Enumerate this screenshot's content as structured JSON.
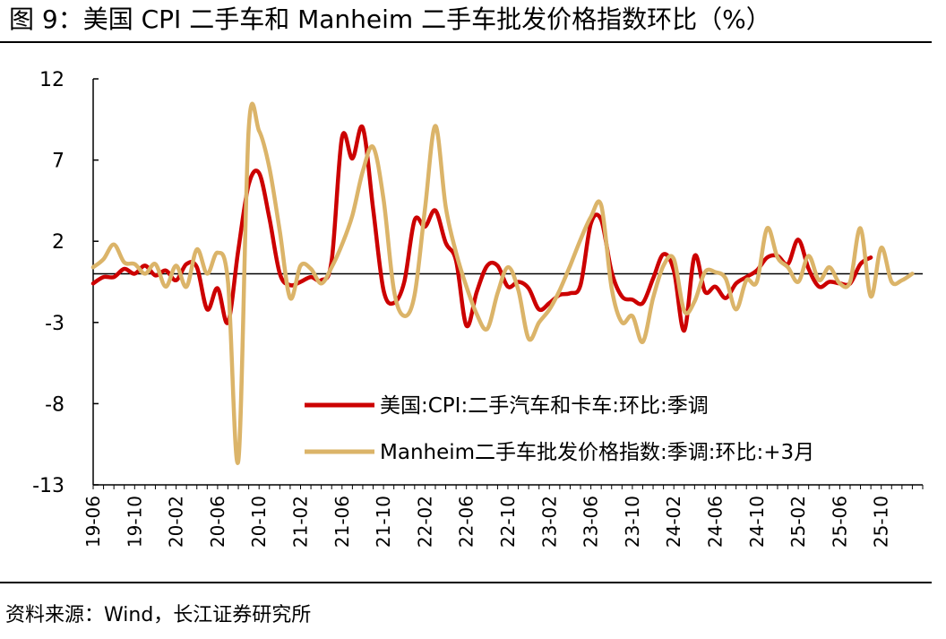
{
  "header": {
    "title": "图 9：美国 CPI 二手车和 Manheim 二手车批发价格指数环比（%）"
  },
  "footer": {
    "source": "资料来源：Wind，长江证券研究所"
  },
  "colors": {
    "cpi_series": "#cc0000",
    "manheim_series": "#dbb469",
    "axis": "#000000"
  },
  "chart_data": {
    "type": "line",
    "ylim": [
      -13,
      12
    ],
    "yticks": [
      12,
      7,
      2,
      -3,
      -8,
      -13
    ],
    "xlabel": "",
    "ylabel": "",
    "x_tick_labels": [
      "19-06",
      "19-10",
      "20-02",
      "20-06",
      "20-10",
      "21-02",
      "21-06",
      "21-10",
      "22-02",
      "22-06",
      "22-10",
      "23-02",
      "23-06",
      "23-10",
      "24-02",
      "24-06",
      "24-10",
      "25-02",
      "25-06",
      "25-10"
    ],
    "legend_position": "lower-center",
    "grid": false,
    "series": [
      {
        "name": "美国:CPI:二手汽车和卡车:环比:季调",
        "start": "2019-06",
        "values": [
          -0.6,
          -0.2,
          -0.2,
          0.3,
          0.0,
          0.5,
          -0.1,
          0.2,
          -0.4,
          0.6,
          0.4,
          -2.2,
          -0.9,
          -3.0,
          1.5,
          5.5,
          6.2,
          3.4,
          0.0,
          -0.7,
          -0.5,
          -0.2,
          -0.4,
          0.8,
          8.4,
          7.1,
          9.0,
          4.0,
          -1.0,
          -1.8,
          -0.5,
          3.3,
          2.9,
          3.9,
          1.9,
          0.8,
          -3.2,
          -1.1,
          0.5,
          0.5,
          -0.8,
          -0.5,
          -0.9,
          -2.2,
          -1.8,
          -1.3,
          -1.2,
          -0.7,
          3.1,
          3.3,
          0.1,
          -1.4,
          -1.6,
          -1.8,
          -0.3,
          1.2,
          0.2,
          -3.5,
          1.1,
          -1.1,
          -0.8,
          -1.5,
          -0.6,
          -0.2,
          0.2,
          1.0,
          1.1,
          0.6,
          2.1,
          0.3,
          -0.8,
          -0.5,
          -0.6,
          -0.6,
          0.6,
          1.0
        ]
      },
      {
        "name": "Manheim二手车批发价格指数:季调:环比:+3月",
        "start": "2019-06",
        "values": [
          0.4,
          0.9,
          1.8,
          0.7,
          0.6,
          0.0,
          0.6,
          -0.8,
          0.5,
          -0.8,
          1.5,
          -0.0,
          1.3,
          -0.5,
          -11.5,
          8.9,
          8.8,
          6.5,
          2.6,
          -1.5,
          0.5,
          0.3,
          -0.6,
          0.4,
          1.8,
          3.6,
          6.3,
          7.8,
          4.6,
          -1.0,
          -2.6,
          -1.3,
          4.0,
          9.1,
          4.1,
          1.3,
          -0.8,
          -2.5,
          -3.4,
          -1.2,
          0.4,
          -1.0,
          -4.0,
          -3.0,
          -2.2,
          -1.0,
          0.5,
          2.1,
          3.5,
          4.2,
          -0.9,
          -3.0,
          -2.6,
          -4.2,
          -1.5,
          0.5,
          0.9,
          -2.3,
          -1.7,
          0.1,
          0.1,
          -0.3,
          -2.2,
          -0.4,
          -0.5,
          2.8,
          1.0,
          0.4,
          -0.5,
          1.1,
          -0.4,
          0.4,
          -0.6,
          -0.5,
          2.8,
          -1.4,
          1.6,
          -0.5,
          -0.4,
          0.0
        ]
      }
    ]
  }
}
